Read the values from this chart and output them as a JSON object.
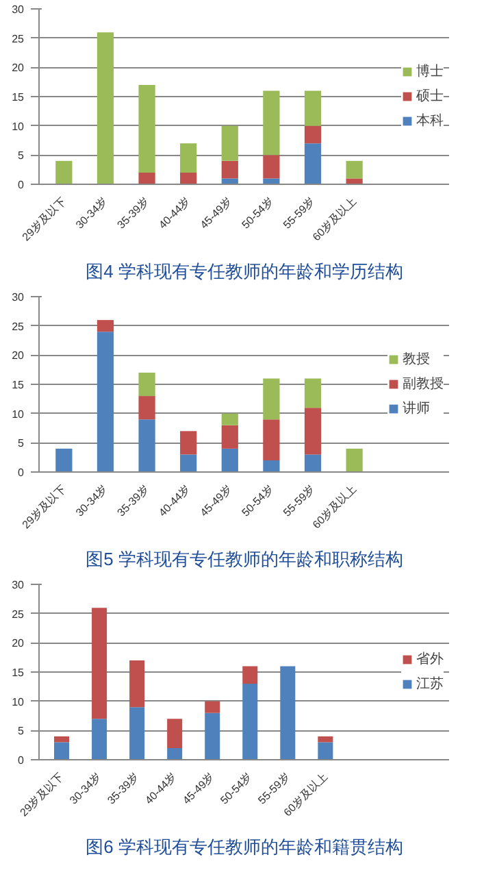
{
  "chart_data": [
    {
      "type": "bar",
      "stacked": true,
      "title": "图4 学科现有专任教师的年龄和学历结构",
      "categories": [
        "29岁及以下",
        "30-34岁",
        "35-39岁",
        "40-44岁",
        "45-49岁",
        "50-54岁",
        "55-59岁",
        "60岁及以上"
      ],
      "ylim": [
        0,
        30
      ],
      "yticks": [
        0,
        5,
        10,
        15,
        20,
        25,
        30
      ],
      "grid": "y",
      "legend": "right",
      "series": [
        {
          "name": "本科",
          "color": "#4f81bd",
          "values": [
            0,
            0,
            0,
            0,
            1,
            1,
            7,
            0
          ]
        },
        {
          "name": "硕士",
          "color": "#c0504d",
          "values": [
            0,
            0,
            2,
            2,
            3,
            4,
            3,
            1
          ]
        },
        {
          "name": "博士",
          "color": "#9bbb59",
          "values": [
            4,
            26,
            15,
            5,
            6,
            11,
            6,
            3
          ]
        }
      ]
    },
    {
      "type": "bar",
      "stacked": true,
      "title": "图5 学科现有专任教师的年龄和职称结构",
      "categories": [
        "29岁及以下",
        "30-34岁",
        "35-39岁",
        "40-44岁",
        "45-49岁",
        "50-54岁",
        "55-59岁",
        "60岁及以上"
      ],
      "ylim": [
        0,
        30
      ],
      "yticks": [
        0,
        5,
        10,
        15,
        20,
        25,
        30
      ],
      "grid": "y",
      "legend": "right",
      "series": [
        {
          "name": "讲师",
          "color": "#4f81bd",
          "values": [
            4,
            24,
            9,
            3,
            4,
            2,
            3,
            0
          ]
        },
        {
          "name": "副教授",
          "color": "#c0504d",
          "values": [
            0,
            2,
            4,
            4,
            4,
            7,
            8,
            0
          ]
        },
        {
          "name": "教授",
          "color": "#9bbb59",
          "values": [
            0,
            0,
            4,
            0,
            2,
            7,
            5,
            4
          ]
        }
      ]
    },
    {
      "type": "bar",
      "stacked": true,
      "title": "图6 学科现有专任教师的年龄和籍贯结构",
      "categories": [
        "29岁及以下",
        "30-34岁",
        "35-39岁",
        "40-44岁",
        "45-49岁",
        "50-54岁",
        "55-59岁",
        "60岁及以上",
        null
      ],
      "ylim": [
        0,
        30
      ],
      "yticks": [
        0,
        5,
        10,
        15,
        20,
        25,
        30
      ],
      "grid": "y",
      "legend": "right",
      "series": [
        {
          "name": "江苏",
          "color": "#4f81bd",
          "values": [
            3,
            7,
            9,
            2,
            8,
            13,
            16,
            3,
            null
          ]
        },
        {
          "name": "省外",
          "color": "#c0504d",
          "values": [
            1,
            19,
            8,
            5,
            2,
            3,
            0,
            1,
            null
          ]
        }
      ]
    }
  ]
}
